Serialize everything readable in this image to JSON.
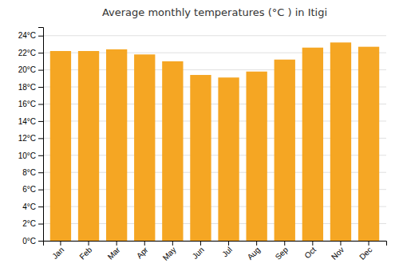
{
  "chart_data": {
    "type": "bar",
    "title": "Average monthly temperatures (°C ) in Itigi",
    "categories": [
      "Jan",
      "Feb",
      "Mar",
      "Apr",
      "May",
      "Jun",
      "Jul",
      "Aug",
      "Sep",
      "Oct",
      "Nov",
      "Dec"
    ],
    "values": [
      22.2,
      22.2,
      22.4,
      21.8,
      21.0,
      19.4,
      19.1,
      19.8,
      21.2,
      22.6,
      23.2,
      22.7
    ],
    "color": "#F5A623",
    "ylim": [
      0,
      25
    ],
    "yticks": [
      {
        "value": 0,
        "label": "0°C"
      },
      {
        "value": 2,
        "label": "2°C"
      },
      {
        "value": 4,
        "label": "4°C"
      },
      {
        "value": 6,
        "label": "6°C"
      },
      {
        "value": 8,
        "label": "8°C"
      },
      {
        "value": 10,
        "label": "10°C"
      },
      {
        "value": 12,
        "label": "12°C"
      },
      {
        "value": 14,
        "label": "14°C"
      },
      {
        "value": 16,
        "label": "16°C"
      },
      {
        "value": 18,
        "label": "18°C"
      },
      {
        "value": 20,
        "label": "20°C"
      },
      {
        "value": 22,
        "label": "22°C"
      },
      {
        "value": 24,
        "label": "24°C"
      }
    ],
    "grid": true
  }
}
